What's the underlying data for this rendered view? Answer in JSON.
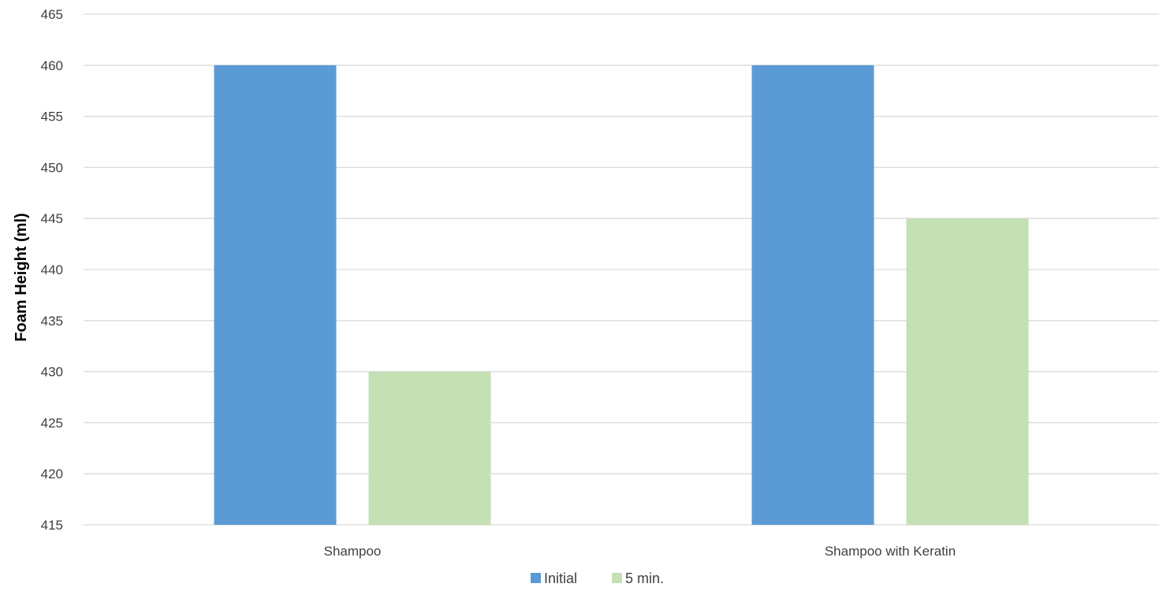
{
  "chart_data": {
    "type": "bar",
    "title": "",
    "xlabel": "",
    "ylabel": "Foam Height (ml)",
    "categories": [
      "Shampoo",
      "Shampoo with Keratin"
    ],
    "series": [
      {
        "name": "Initial",
        "values": [
          460,
          460
        ],
        "color": "#5b9bd5"
      },
      {
        "name": "5 min.",
        "values": [
          430,
          445
        ],
        "color": "#c5e0b4"
      }
    ],
    "ylim": [
      415,
      465
    ],
    "yticks": [
      415,
      420,
      425,
      430,
      435,
      440,
      445,
      450,
      455,
      460,
      465
    ],
    "grid": true,
    "legend_position": "bottom"
  }
}
